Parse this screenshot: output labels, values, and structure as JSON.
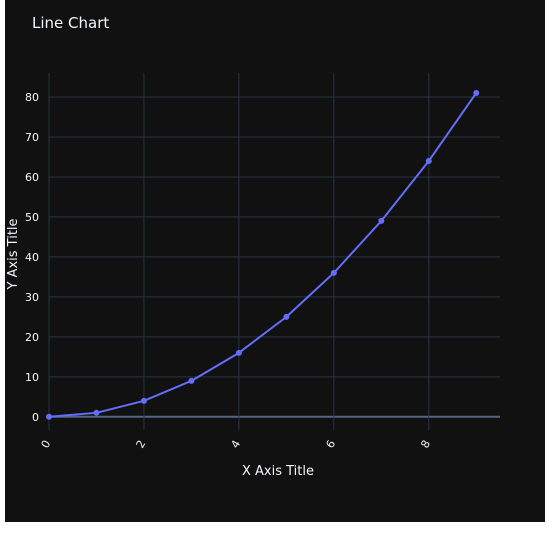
{
  "chart_data": {
    "type": "line",
    "title": "Line Chart",
    "xlabel": "X Axis Title",
    "ylabel": "Y Axis Title",
    "x": [
      0,
      1,
      2,
      3,
      4,
      5,
      6,
      7,
      8,
      9
    ],
    "series": [
      {
        "values": [
          0,
          1,
          4,
          9,
          16,
          25,
          36,
          49,
          64,
          81
        ],
        "color": "#636efa"
      }
    ],
    "xlim": [
      0,
      9.5
    ],
    "ylim": [
      -3.3,
      86
    ],
    "xticks": [
      "0",
      "2",
      "4",
      "6",
      "8"
    ],
    "yticks": [
      "0",
      "10",
      "20",
      "30",
      "40",
      "50",
      "60",
      "70",
      "80"
    ],
    "grid": true,
    "colors": {
      "background": "#111111",
      "grid": "#283442",
      "zeroline": "#506784",
      "text": "#f2f5fa"
    }
  }
}
